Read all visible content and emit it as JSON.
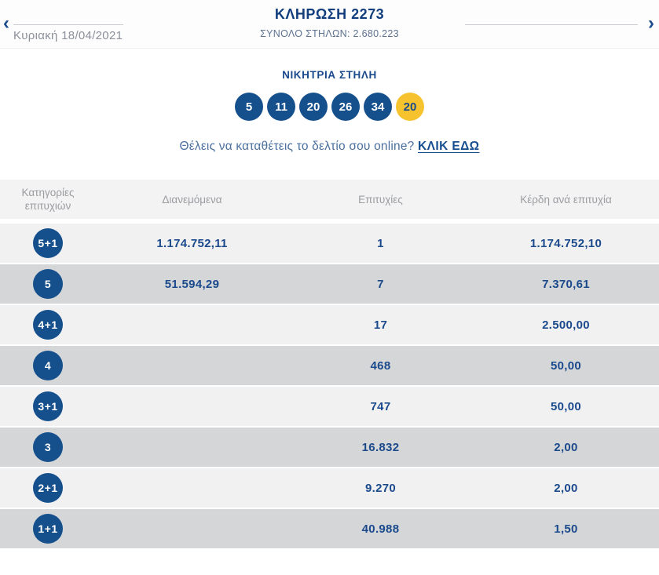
{
  "header": {
    "title": "ΚΛΗΡΩΣΗ 2273",
    "subtitle": "ΣΥΝΟΛΟ ΣΤΗΛΩΝ: 2.680.223",
    "date": "Κυριακή 18/04/2021",
    "prev_icon": "‹",
    "next_icon": "›"
  },
  "winning": {
    "heading": "ΝΙΚΗΤΡΙΑ ΣΤΗΛΗ",
    "numbers": [
      "5",
      "11",
      "20",
      "26",
      "34"
    ],
    "joker": "20",
    "cta_text": "Θέλεις να καταθέτεις το δελτίο σου online?",
    "cta_link": "ΚΛΙΚ ΕΔΩ"
  },
  "colors": {
    "primary_blue": "#15508d",
    "dark_blue_text": "#1b4a8c",
    "joker_yellow": "#f6c32e",
    "row_light": "#f1f1f2",
    "row_dark": "#d4d6d8",
    "header_gray_text": "#9a9ca0"
  },
  "table": {
    "headers": {
      "category": "Κατηγορίες επιτυχιών",
      "distributed": "Διανεμόμενα",
      "winners": "Επιτυχίες",
      "prize": "Κέρδη ανά επιτυχία"
    },
    "rows": [
      {
        "category": "5+1",
        "distributed": "1.174.752,11",
        "winners": "1",
        "prize": "1.174.752,10"
      },
      {
        "category": "5",
        "distributed": "51.594,29",
        "winners": "7",
        "prize": "7.370,61"
      },
      {
        "category": "4+1",
        "distributed": "",
        "winners": "17",
        "prize": "2.500,00"
      },
      {
        "category": "4",
        "distributed": "",
        "winners": "468",
        "prize": "50,00"
      },
      {
        "category": "3+1",
        "distributed": "",
        "winners": "747",
        "prize": "50,00"
      },
      {
        "category": "3",
        "distributed": "",
        "winners": "16.832",
        "prize": "2,00"
      },
      {
        "category": "2+1",
        "distributed": "",
        "winners": "9.270",
        "prize": "2,00"
      },
      {
        "category": "1+1",
        "distributed": "",
        "winners": "40.988",
        "prize": "1,50"
      }
    ]
  }
}
